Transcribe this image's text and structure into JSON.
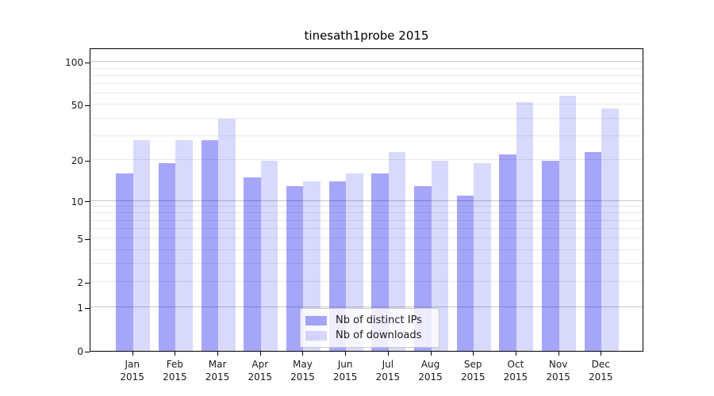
{
  "figure": {
    "title": "tinesath1probe 2015",
    "background": "#ffffff"
  },
  "chart_data": {
    "type": "bar",
    "title": "tinesath1probe 2015",
    "categories": [
      "Jan 2015",
      "Feb 2015",
      "Mar 2015",
      "Apr 2015",
      "May 2015",
      "Jun 2015",
      "Jul 2015",
      "Aug 2015",
      "Sep 2015",
      "Oct 2015",
      "Nov 2015",
      "Dec 2015"
    ],
    "series": [
      {
        "name": "Nb of distinct IPs",
        "color": "rgba(0,0,235,0.35)",
        "values": [
          16,
          19,
          28,
          15,
          13,
          14,
          16,
          13,
          11,
          22,
          20,
          23
        ]
      },
      {
        "name": "Nb of downloads",
        "color": "rgba(0,0,235,0.15)",
        "values": [
          28,
          28,
          40,
          20,
          14,
          16,
          23,
          20,
          19,
          52,
          58,
          47
        ]
      }
    ],
    "y_scale": "log1p",
    "ylim": [
      0,
      127
    ],
    "y_ticks": [
      0,
      1,
      2,
      5,
      10,
      20,
      50,
      100
    ],
    "y_major_gridlines": [
      1,
      10,
      100
    ],
    "y_minor_gridlines": [
      2,
      3,
      4,
      5,
      6,
      7,
      8,
      9,
      20,
      30,
      40,
      50,
      60,
      70,
      80,
      90
    ],
    "grid": "horizontal",
    "legend_position": "lower-center-inside",
    "xlabel": "",
    "ylabel": ""
  },
  "colors": {
    "axis": "#000000",
    "text": "#1a1a1a",
    "grid_minor": "#e9e9e9",
    "grid_major": "#c6c6c6",
    "legend_border": "#cccccc",
    "legend_background": "rgba(255,255,255,0.8)"
  }
}
